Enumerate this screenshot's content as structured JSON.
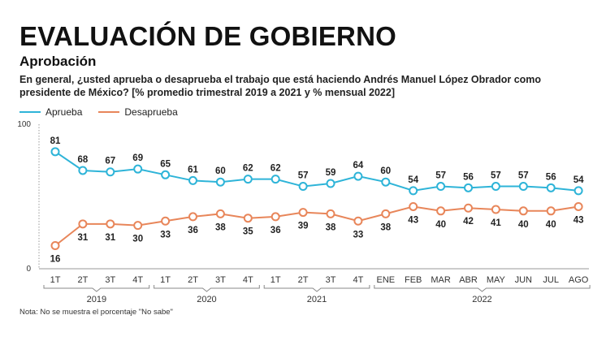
{
  "header": {
    "title": "EVALUACIÓN DE GOBIERNO",
    "subtitle": "Aprobación",
    "question": "En general, ¿usted aprueba o desaprueba el trabajo que está haciendo Andrés Manuel López Obrador como presidente de México?  [% promedio trimestral 2019 a 2021 y % mensual  2022]"
  },
  "note": "Nota: No se muestra el porcentaje \"No sabe\"",
  "colors": {
    "aprueba": "#2eb4d8",
    "desaprueba": "#e8865a",
    "axis": "#555555",
    "grid": "#9a9a9a"
  },
  "chart_data": {
    "type": "line",
    "title": "Aprobación",
    "ylim": [
      0,
      100
    ],
    "yticks": [
      0,
      100
    ],
    "categories": [
      "1T",
      "2T",
      "3T",
      "4T",
      "1T",
      "2T",
      "3T",
      "4T",
      "1T",
      "2T",
      "3T",
      "4T",
      "ENE",
      "FEB",
      "MAR",
      "ABR",
      "MAY",
      "JUN",
      "JUL",
      "AGO"
    ],
    "groups": [
      {
        "label": "2019",
        "count": 4
      },
      {
        "label": "2020",
        "count": 4
      },
      {
        "label": "2021",
        "count": 4
      },
      {
        "label": "2022",
        "count": 8
      }
    ],
    "series": [
      {
        "name": "Aprueba",
        "values": [
          81,
          68,
          67,
          69,
          65,
          61,
          60,
          62,
          62,
          57,
          59,
          64,
          60,
          54,
          57,
          56,
          57,
          57,
          56,
          54
        ]
      },
      {
        "name": "Desaprueba",
        "values": [
          16,
          31,
          31,
          30,
          33,
          36,
          38,
          35,
          36,
          39,
          38,
          33,
          38,
          43,
          40,
          42,
          41,
          40,
          40,
          43
        ]
      }
    ]
  }
}
